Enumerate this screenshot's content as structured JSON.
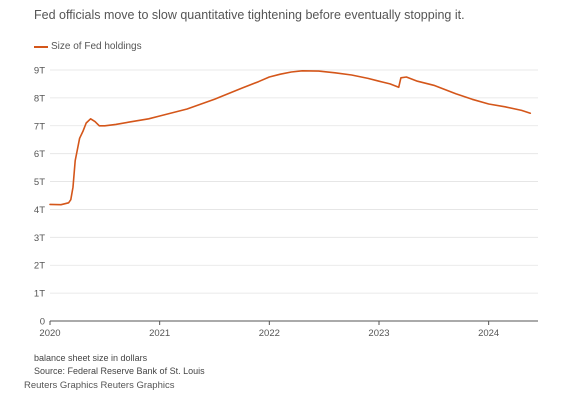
{
  "chart_data": {
    "type": "line",
    "title": "Fed officials move to slow quantitative tightening before eventually stopping it.",
    "legend": "Size of Fed holdings",
    "legend_position": "top-left",
    "xlabel": "",
    "ylabel": "",
    "y_ticks": [
      "0",
      "1T",
      "2T",
      "3T",
      "4T",
      "5T",
      "6T",
      "7T",
      "8T",
      "9T"
    ],
    "x_ticks": [
      "2020",
      "2021",
      "2022",
      "2023",
      "2024"
    ],
    "ylim": [
      0,
      9
    ],
    "xlim": [
      2020.0,
      2024.45
    ],
    "grid": "horizontal",
    "color": "#d4561a",
    "series": [
      {
        "name": "Size of Fed holdings",
        "unit": "trillion dollars",
        "x": [
          2020.0,
          2020.1,
          2020.17,
          2020.19,
          2020.21,
          2020.23,
          2020.25,
          2020.27,
          2020.3,
          2020.33,
          2020.37,
          2020.41,
          2020.45,
          2020.5,
          2020.6,
          2020.75,
          2020.9,
          2021.0,
          2021.25,
          2021.5,
          2021.75,
          2021.9,
          2022.0,
          2022.1,
          2022.2,
          2022.3,
          2022.45,
          2022.6,
          2022.75,
          2022.9,
          2023.0,
          2023.1,
          2023.18,
          2023.2,
          2023.25,
          2023.35,
          2023.5,
          2023.7,
          2023.85,
          2024.0,
          2024.15,
          2024.3,
          2024.38
        ],
        "values": [
          4.18,
          4.17,
          4.24,
          4.35,
          4.8,
          5.75,
          6.15,
          6.55,
          6.8,
          7.1,
          7.25,
          7.15,
          7.0,
          7.0,
          7.05,
          7.15,
          7.25,
          7.35,
          7.6,
          7.95,
          8.35,
          8.58,
          8.75,
          8.85,
          8.93,
          8.97,
          8.96,
          8.9,
          8.82,
          8.7,
          8.6,
          8.5,
          8.38,
          8.72,
          8.75,
          8.6,
          8.45,
          8.15,
          7.95,
          7.78,
          7.68,
          7.55,
          7.45
        ]
      }
    ]
  },
  "note": "balance sheet size in dollars",
  "source": "Source: Federal Reserve Bank of St. Louis",
  "footer": "Reuters Graphics Reuters Graphics"
}
